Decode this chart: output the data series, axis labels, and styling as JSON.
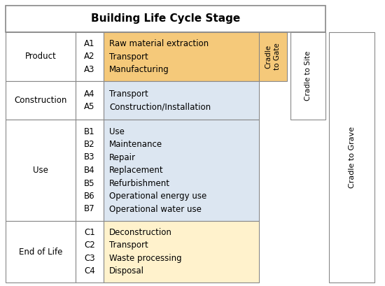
{
  "title": "Building Life Cycle Stage",
  "rows": [
    {
      "stage": "Product",
      "codes": [
        "A1",
        "A2",
        "A3"
      ],
      "items": [
        "Raw material extraction",
        "Transport",
        "Manufacturing"
      ],
      "item_color": "#f5c97a"
    },
    {
      "stage": "Construction",
      "codes": [
        "A4",
        "A5"
      ],
      "items": [
        "Transport",
        "Construction/Installation"
      ],
      "item_color": "#dce6f1"
    },
    {
      "stage": "Use",
      "codes": [
        "B1",
        "B2",
        "B3",
        "B4",
        "B5",
        "B6",
        "B7"
      ],
      "items": [
        "Use",
        "Maintenance",
        "Repair",
        "Replacement",
        "Refurbishment",
        "Operational energy use",
        "Operational water use"
      ],
      "item_color": "#dce6f1"
    },
    {
      "stage": "End of Life",
      "codes": [
        "C1",
        "C2",
        "C3",
        "C4"
      ],
      "items": [
        "Deconstruction",
        "Transport",
        "Waste processing",
        "Disposal"
      ],
      "item_color": "#fff2cc"
    }
  ],
  "bg_color": "#ffffff",
  "title_fontsize": 11,
  "cell_fontsize": 8.5,
  "stage_fontsize": 8.5,
  "code_fontsize": 8.5,
  "span_fontsize": 7.5,
  "border_color": "#888888",
  "text_color": "#000000",
  "cradle_gate_color": "#f5c97a"
}
